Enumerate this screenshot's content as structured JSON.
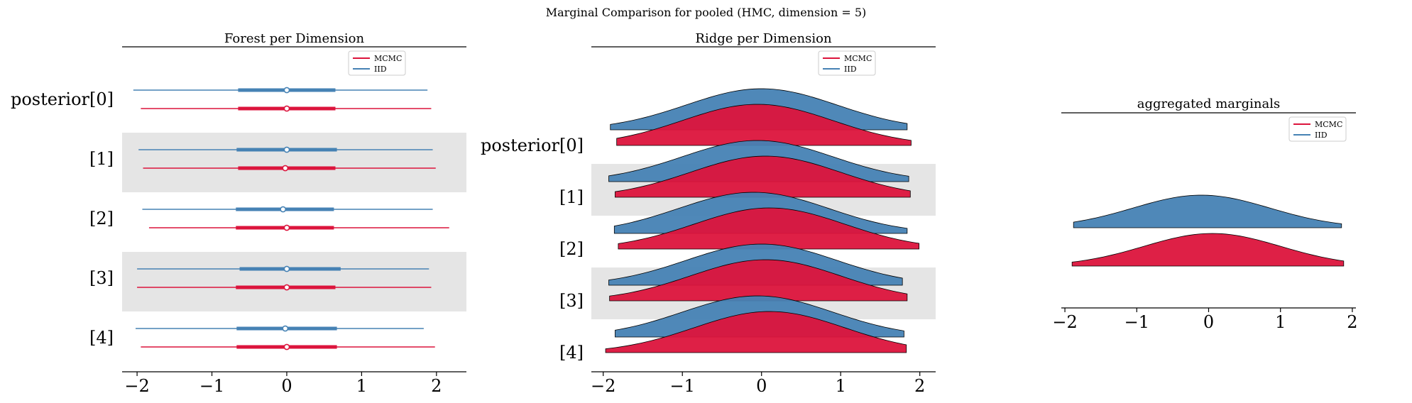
{
  "suptitle": "Marginal Comparison for pooled (HMC, dimension = 5)",
  "colors": {
    "mcmc": "#dc143c",
    "iid": "#4682b4",
    "band": "#e5e5e5",
    "outline": "#000000"
  },
  "legend": {
    "entries": [
      "MCMC",
      "IID"
    ]
  },
  "chart_data": [
    {
      "type": "forest",
      "title": "Forest per Dimension",
      "xlim": [
        -2.2,
        2.4
      ],
      "xticks": [
        -2,
        -1,
        0,
        1,
        2
      ],
      "xtick_labels": [
        "−2",
        "−1",
        "0",
        "1",
        "2"
      ],
      "categories": [
        "posterior[0]",
        "[1]",
        "[2]",
        "[3]",
        "[4]"
      ],
      "legend_position": "top-right",
      "series": [
        {
          "name": "MCMC",
          "whisker": [
            [
              -1.95,
              1.93
            ],
            [
              -1.92,
              1.99
            ],
            [
              -1.84,
              2.17
            ],
            [
              -2.0,
              1.93
            ],
            [
              -1.95,
              1.98
            ]
          ],
          "iqr": [
            [
              -0.65,
              0.65
            ],
            [
              -0.65,
              0.65
            ],
            [
              -0.68,
              0.63
            ],
            [
              -0.68,
              0.65
            ],
            [
              -0.67,
              0.67
            ]
          ],
          "median": [
            0.0,
            -0.02,
            0.0,
            0.0,
            0.0
          ]
        },
        {
          "name": "IID",
          "whisker": [
            [
              -2.05,
              1.88
            ],
            [
              -1.98,
              1.95
            ],
            [
              -1.93,
              1.95
            ],
            [
              -2.0,
              1.9
            ],
            [
              -2.02,
              1.83
            ]
          ],
          "iqr": [
            [
              -0.65,
              0.65
            ],
            [
              -0.67,
              0.67
            ],
            [
              -0.68,
              0.63
            ],
            [
              -0.63,
              0.72
            ],
            [
              -0.67,
              0.67
            ]
          ],
          "median": [
            0.0,
            0.0,
            -0.05,
            0.0,
            -0.02
          ]
        }
      ]
    },
    {
      "type": "ridge",
      "title": "Ridge per Dimension",
      "xlim": [
        -2.15,
        2.2
      ],
      "xticks": [
        -2,
        -1,
        0,
        1,
        2
      ],
      "xtick_labels": [
        "−2",
        "−1",
        "0",
        "1",
        "2"
      ],
      "categories": [
        "posterior[0]",
        "[1]",
        "[2]",
        "[3]",
        "[4]"
      ],
      "legend_position": "top-right",
      "series": [
        {
          "name": "MCMC",
          "ranges": [
            [
              -1.83,
              1.89
            ],
            [
              -1.85,
              1.88
            ],
            [
              -1.81,
              1.99
            ],
            [
              -1.92,
              1.84
            ],
            [
              -1.97,
              1.83
            ]
          ],
          "peaks": [
            -0.05,
            0.05,
            0.1,
            0.05,
            0.1
          ]
        },
        {
          "name": "IID",
          "ranges": [
            [
              -1.91,
              1.84
            ],
            [
              -1.93,
              1.86
            ],
            [
              -1.86,
              1.84
            ],
            [
              -1.93,
              1.78
            ],
            [
              -1.85,
              1.8
            ]
          ],
          "peaks": [
            0.0,
            -0.05,
            -0.1,
            0.0,
            -0.05
          ]
        }
      ]
    },
    {
      "type": "ridge",
      "title": "aggregated marginals",
      "xlim": [
        -2.05,
        2.05
      ],
      "xticks": [
        -2,
        -1,
        0,
        1,
        2
      ],
      "xtick_labels": [
        "−2",
        "−1",
        "0",
        "1",
        "2"
      ],
      "categories": [],
      "legend_position": "top-right",
      "series": [
        {
          "name": "MCMC",
          "ranges": [
            [
              -1.9,
              1.88
            ]
          ],
          "peaks": [
            0.05
          ]
        },
        {
          "name": "IID",
          "ranges": [
            [
              -1.88,
              1.85
            ]
          ],
          "peaks": [
            -0.1
          ]
        }
      ]
    }
  ]
}
